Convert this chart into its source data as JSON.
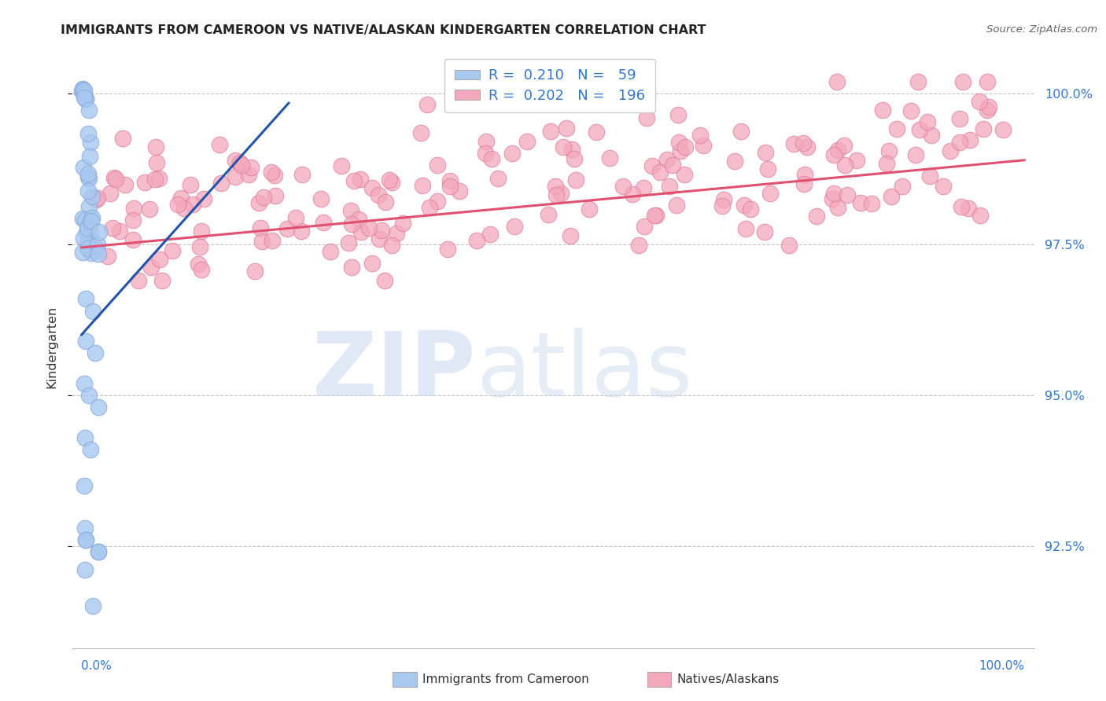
{
  "title": "IMMIGRANTS FROM CAMEROON VS NATIVE/ALASKAN KINDERGARTEN CORRELATION CHART",
  "source": "Source: ZipAtlas.com",
  "ylabel": "Kindergarten",
  "ytick_labels": [
    "92.5%",
    "95.0%",
    "97.5%",
    "100.0%"
  ],
  "ytick_values": [
    0.925,
    0.95,
    0.975,
    1.0
  ],
  "ylim": [
    0.908,
    1.008
  ],
  "xlim": [
    -0.01,
    1.01
  ],
  "legend_blue_r": "0.210",
  "legend_blue_n": "59",
  "legend_pink_r": "0.202",
  "legend_pink_n": "196",
  "blue_color": "#A8C8F0",
  "blue_edge_color": "#88AADE",
  "pink_color": "#F4A8BC",
  "pink_edge_color": "#E080A0",
  "blue_line_color": "#2255AA",
  "pink_line_color": "#E05070",
  "background_color": "#ffffff",
  "blue_line_x": [
    0.0,
    0.22
  ],
  "blue_line_y": [
    0.96,
    0.9985
  ],
  "pink_line_x": [
    0.0,
    1.0
  ],
  "pink_line_y": [
    0.9745,
    0.989
  ],
  "watermark_zip_color": "#C8D8EE",
  "watermark_atlas_color": "#C8D8EE"
}
